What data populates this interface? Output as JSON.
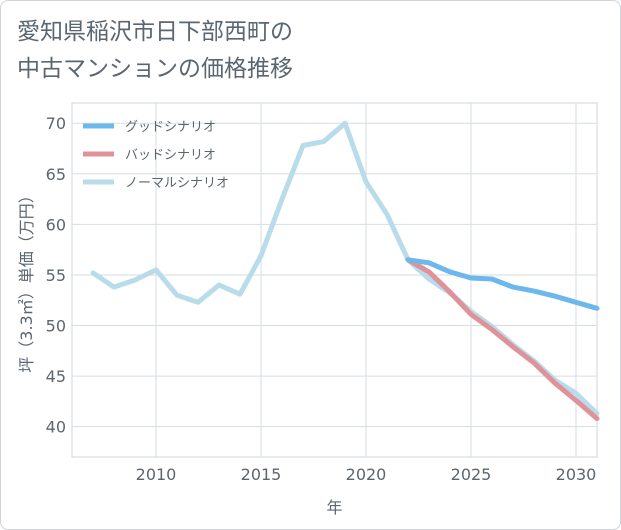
{
  "title_lines": [
    "愛知県稲沢市日下部西町の",
    "中古マンションの価格推移"
  ],
  "chart_data": {
    "type": "line",
    "xlabel": "年",
    "ylabel": "坪（3.3㎡）単価（万円）",
    "xlim": [
      2006,
      2031
    ],
    "ylim": [
      37,
      72
    ],
    "xticks": [
      2010,
      2015,
      2020,
      2025,
      2030
    ],
    "yticks": [
      40,
      45,
      50,
      55,
      60,
      65,
      70
    ],
    "grid": true,
    "legend_position": "top-left",
    "series": [
      {
        "name": "グッドシナリオ",
        "color": "#6cb8ec",
        "x": [
          2022,
          2023,
          2024,
          2025,
          2026,
          2027,
          2028,
          2029,
          2030,
          2031
        ],
        "y": [
          56.5,
          56.2,
          55.3,
          54.7,
          54.6,
          53.8,
          53.4,
          52.9,
          52.3,
          51.7
        ]
      },
      {
        "name": "バッドシナリオ",
        "color": "#e0929a",
        "x": [
          2022,
          2023,
          2024,
          2025,
          2026,
          2027,
          2028,
          2029,
          2030,
          2031
        ],
        "y": [
          56.5,
          55.3,
          53.3,
          51.1,
          49.6,
          47.9,
          46.3,
          44.3,
          42.6,
          40.8
        ]
      },
      {
        "name": "ノーマルシナリオ",
        "color": "#b8dcea",
        "x": [
          2007,
          2008,
          2009,
          2010,
          2011,
          2012,
          2013,
          2014,
          2015,
          2016,
          2017,
          2018,
          2019,
          2020,
          2021,
          2022,
          2023,
          2024,
          2025,
          2026,
          2027,
          2028,
          2029,
          2030,
          2031
        ],
        "y": [
          55.2,
          53.8,
          54.5,
          55.5,
          53.0,
          52.3,
          54.0,
          53.1,
          56.9,
          62.5,
          67.8,
          68.2,
          70.0,
          64.2,
          61.0,
          56.5,
          54.6,
          53.2,
          51.4,
          49.9,
          48.1,
          46.5,
          44.6,
          43.3,
          41.3
        ]
      }
    ]
  }
}
